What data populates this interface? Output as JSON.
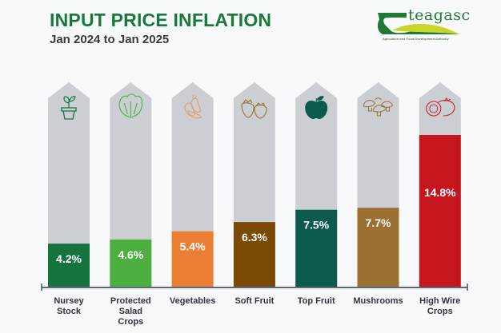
{
  "header": {
    "title": "INPUT PRICE INFLATION",
    "subtitle": "Jan 2024 to Jan 2025"
  },
  "logo": {
    "name": "teagasc",
    "tagline": "Agriculture and Food Development Authority"
  },
  "chart_data": {
    "type": "bar",
    "title": "INPUT PRICE INFLATION",
    "subtitle": "Jan 2024 to Jan 2025",
    "xlabel": "",
    "ylabel": "",
    "ylim": [
      0,
      20
    ],
    "grid": false,
    "categories": [
      "Nursey Stock",
      "Protected Salad Crops",
      "Vegetables",
      "Soft Fruit",
      "Top Fruit",
      "Mushrooms",
      "High Wire Crops"
    ],
    "category_lines": [
      [
        "Nursey",
        "Stock"
      ],
      [
        "Protected",
        "Salad",
        "Crops"
      ],
      [
        "Vegetables"
      ],
      [
        "Soft Fruit"
      ],
      [
        "Top Fruit"
      ],
      [
        "Mushrooms"
      ],
      [
        "High Wire",
        "Crops"
      ]
    ],
    "values": [
      4.2,
      4.6,
      5.4,
      6.3,
      7.5,
      7.7,
      14.8
    ],
    "labels": [
      "4.2%",
      "4.6%",
      "5.4%",
      "6.3%",
      "7.5%",
      "7.7%",
      "14.8%"
    ],
    "colors": [
      "#15743d",
      "#4caf3f",
      "#ea7f34",
      "#7a4a05",
      "#0b5a4c",
      "#9a7132",
      "#c4161c"
    ],
    "icons": [
      "plant-pot-icon",
      "lettuce-icon",
      "carrot-icon",
      "strawberry-icon",
      "apple-icon",
      "mushroom-icon",
      "tomato-icon"
    ],
    "background_color": "#cbcfd3"
  }
}
